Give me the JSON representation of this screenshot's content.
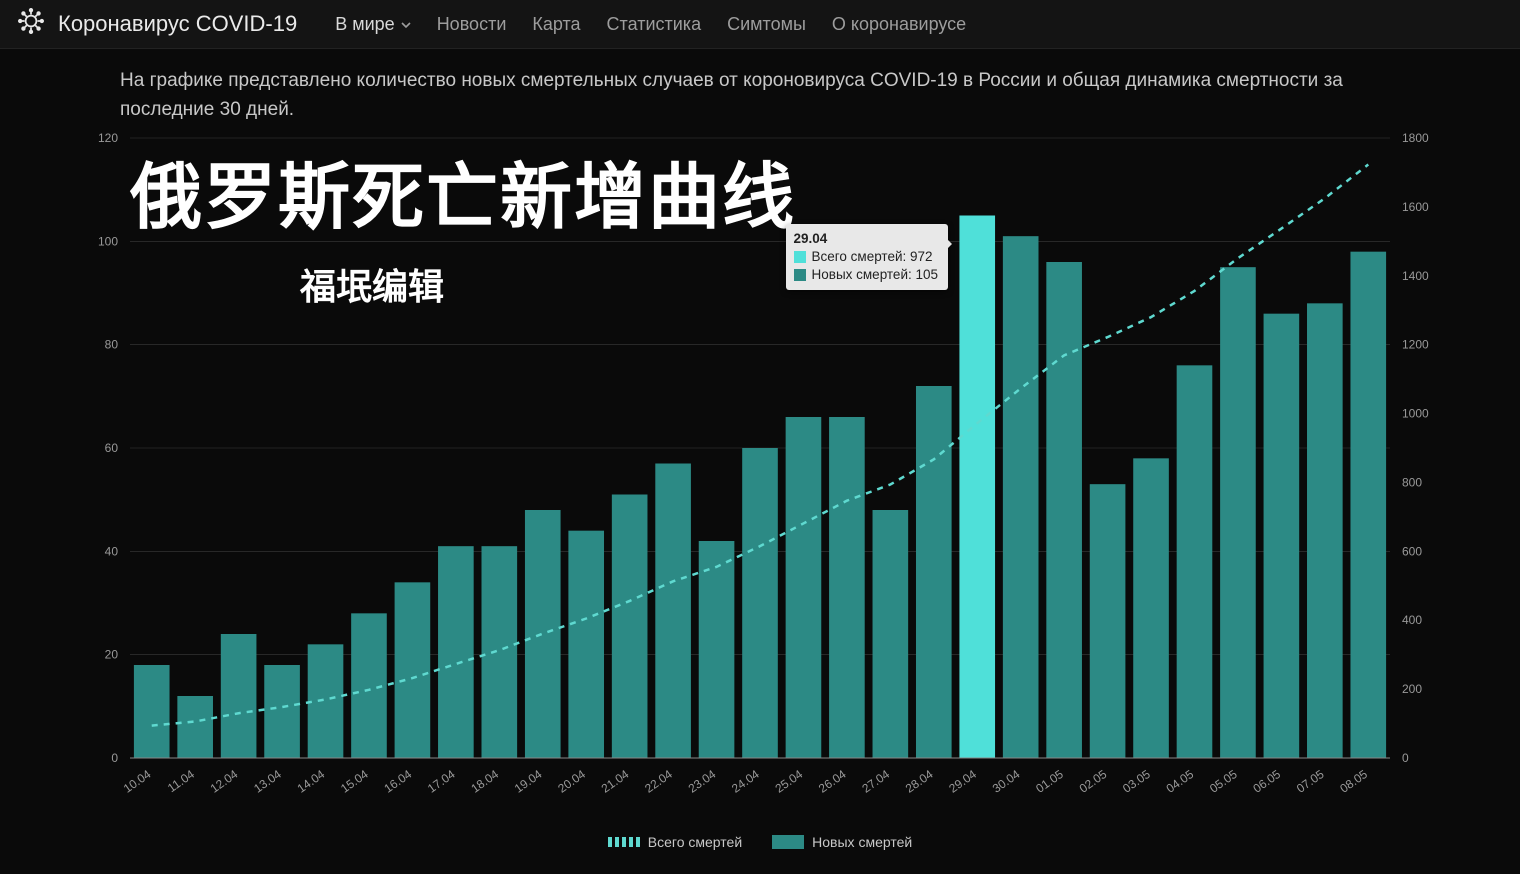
{
  "header": {
    "brand": "Коронавирус COVID-19",
    "nav": [
      {
        "label": "В мире",
        "active": true,
        "hasDropdown": true
      },
      {
        "label": "Новости"
      },
      {
        "label": "Карта"
      },
      {
        "label": "Статистика"
      },
      {
        "label": "Симтомы"
      },
      {
        "label": "О коронавирусе"
      }
    ]
  },
  "description": "На графике представлено количество новых смертельных случаев от короновируса COVID-19 в России и общая динамика смертности за последние 30 дней.",
  "overlay": {
    "title": "俄罗斯死亡新增曲线",
    "subtitle": "福垊编辑"
  },
  "chart": {
    "type": "bar+line",
    "background_color": "#0a0a0a",
    "grid_color": "#3a3a3a",
    "axis_font_size": 12,
    "axis_color": "#999999",
    "categories": [
      "10.04",
      "11.04",
      "12.04",
      "13.04",
      "14.04",
      "15.04",
      "16.04",
      "17.04",
      "18.04",
      "19.04",
      "20.04",
      "21.04",
      "22.04",
      "23.04",
      "24.04",
      "25.04",
      "26.04",
      "27.04",
      "28.04",
      "29.04",
      "30.04",
      "01.05",
      "02.05",
      "03.05",
      "04.05",
      "05.05",
      "06.05",
      "07.05",
      "08.05"
    ],
    "bars": {
      "label": "Новых смертей",
      "color": "#2c8a85",
      "highlight_color": "#4fe0d9",
      "highlight_index": 19,
      "bar_width_ratio": 0.82,
      "values": [
        18,
        12,
        24,
        18,
        22,
        28,
        34,
        41,
        41,
        48,
        44,
        51,
        57,
        42,
        60,
        66,
        66,
        48,
        72,
        105,
        101,
        96,
        53,
        58,
        76,
        95,
        86,
        88,
        98
      ]
    },
    "line": {
      "label": "Всего смертей",
      "color": "#5fd9d0",
      "dash": "6,6",
      "width": 2.5,
      "values": [
        94,
        106,
        130,
        148,
        170,
        198,
        232,
        273,
        313,
        361,
        405,
        456,
        513,
        555,
        615,
        681,
        747,
        794,
        867,
        972,
        1073,
        1169,
        1222,
        1280,
        1356,
        1451,
        1537,
        1625,
        1723
      ]
    },
    "y_left": {
      "min": 0,
      "max": 120,
      "step": 20
    },
    "y_right": {
      "min": 0,
      "max": 1800,
      "step": 200
    }
  },
  "tooltip": {
    "date": "29.04",
    "rows": [
      {
        "swatch": "#4fe0d9",
        "text": "Всего смертей: 972"
      },
      {
        "swatch": "#2c8a85",
        "text": "Новых смертей: 105"
      }
    ]
  },
  "legend": [
    {
      "type": "line",
      "color": "#5fd9d0",
      "label": "Всего смертей"
    },
    {
      "type": "bar",
      "color": "#2c8a85",
      "label": "Новых смертей"
    }
  ]
}
